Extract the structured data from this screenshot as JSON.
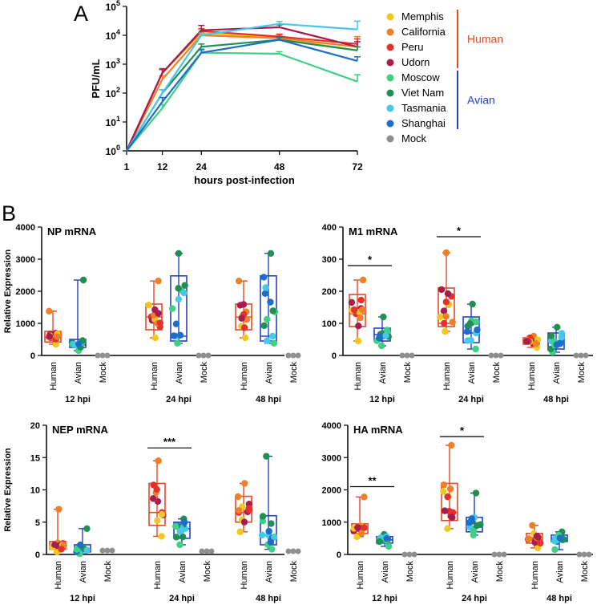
{
  "panel_labels": {
    "a": "A",
    "b": "B"
  },
  "colors": {
    "Memphis": "#f2c81f",
    "California": "#f07f2a",
    "Peru": "#e4312b",
    "Udorn": "#a81c4e",
    "Moscow": "#3dd181",
    "Viet Nam": "#1f8f52",
    "Tasmania": "#46c8ea",
    "Shanghai": "#1c6ec9",
    "Mock": "#8f8f8f",
    "Human": "#e54a25",
    "Avian": "#2541c4"
  },
  "chart_data": [
    {
      "id": "growth",
      "type": "line",
      "ylabel": "PFU/mL",
      "xlabel": "hours post-infection",
      "x": [
        1,
        12,
        24,
        48,
        72
      ],
      "x_tick_labels": [
        "1",
        "12",
        "24",
        "48",
        "72"
      ],
      "yscale": "log",
      "ylim": [
        1,
        100000
      ],
      "y_tick_labels": [
        {
          "base": "10",
          "exp": "0"
        },
        {
          "base": "10",
          "exp": "1"
        },
        {
          "base": "10",
          "exp": "2"
        },
        {
          "base": "10",
          "exp": "3"
        },
        {
          "base": "10",
          "exp": "4"
        },
        {
          "base": "10",
          "exp": "5"
        }
      ],
      "series": [
        {
          "name": "Memphis",
          "values": [
            1,
            500,
            12000,
            8000,
            3000
          ],
          "err": [
            0,
            150,
            3000,
            1500,
            900
          ]
        },
        {
          "name": "California",
          "values": [
            1,
            300,
            10000,
            8000,
            4000
          ],
          "err": [
            0,
            100,
            2500,
            2000,
            5000
          ]
        },
        {
          "name": "Peru",
          "values": [
            1,
            500,
            14000,
            9000,
            5000
          ],
          "err": [
            0,
            150,
            3000,
            2000,
            2500
          ]
        },
        {
          "name": "Udorn",
          "values": [
            1,
            500,
            15000,
            19000,
            4000
          ],
          "err": [
            0,
            200,
            7000,
            4000,
            2000
          ]
        },
        {
          "name": "Moscow",
          "values": [
            1,
            30,
            2500,
            2300,
            250
          ],
          "err": [
            0,
            10,
            500,
            400,
            180
          ]
        },
        {
          "name": "Viet Nam",
          "values": [
            1,
            100,
            4000,
            7000,
            3000
          ],
          "err": [
            0,
            30,
            1000,
            1500,
            1000
          ]
        },
        {
          "name": "Tasmania",
          "values": [
            1,
            100,
            10000,
            25000,
            16000
          ],
          "err": [
            0,
            30,
            2000,
            5000,
            15000
          ]
        },
        {
          "name": "Shanghai",
          "values": [
            1,
            50,
            2500,
            7000,
            1300
          ],
          "err": [
            0,
            20,
            800,
            1500,
            500
          ]
        }
      ],
      "legend": [
        "Memphis",
        "California",
        "Peru",
        "Udorn",
        "Moscow",
        "Viet Nam",
        "Tasmania",
        "Shanghai",
        "Mock"
      ],
      "groups": [
        {
          "label": "Human",
          "members": [
            "Memphis",
            "California",
            "Peru",
            "Udorn"
          ]
        },
        {
          "label": "Avian",
          "members": [
            "Moscow",
            "Viet Nam",
            "Tasmania",
            "Shanghai"
          ]
        }
      ]
    },
    {
      "id": "np",
      "type": "box",
      "title": "NP mRNA",
      "ylabel": "Relative Expression",
      "ylim": [
        0,
        4000
      ],
      "yticks": [
        0,
        1000,
        2000,
        3000,
        4000
      ],
      "y_tick_labels": [
        "0",
        "1000",
        "2000",
        "3000",
        "4000"
      ],
      "categories": [
        "Human",
        "Avian",
        "Mock"
      ],
      "timepoints": [
        "12 hpi",
        "24 hpi",
        "48 hpi"
      ],
      "boxes": [
        [
          {
            "min": 350,
            "q1": 420,
            "median": 550,
            "q3": 750,
            "max": 1380
          },
          {
            "min": 150,
            "q1": 250,
            "median": 330,
            "q3": 500,
            "max": 2350
          },
          {
            "min": 0,
            "q1": 0,
            "median": 0,
            "q3": 0,
            "max": 0
          }
        ],
        [
          {
            "min": 550,
            "q1": 800,
            "median": 1200,
            "q3": 1600,
            "max": 2320
          },
          {
            "min": 380,
            "q1": 450,
            "median": 600,
            "q3": 2480,
            "max": 3180
          },
          {
            "min": 0,
            "q1": 0,
            "median": 0,
            "q3": 0,
            "max": 0
          }
        ],
        [
          {
            "min": 550,
            "q1": 800,
            "median": 1200,
            "q3": 1600,
            "max": 2320
          },
          {
            "min": 380,
            "q1": 450,
            "median": 600,
            "q3": 2480,
            "max": 3180
          },
          {
            "min": 0,
            "q1": 0,
            "median": 0,
            "q3": 0,
            "max": 0
          }
        ]
      ],
      "significance": []
    },
    {
      "id": "m1",
      "type": "box",
      "title": "M1 mRNA",
      "ylabel": "",
      "ylim": [
        0,
        400
      ],
      "yticks": [
        0,
        100,
        200,
        300,
        400
      ],
      "y_tick_labels": [
        "0",
        "100",
        "200",
        "300",
        "400"
      ],
      "categories": [
        "Human",
        "Avian",
        "Mock"
      ],
      "timepoints": [
        "12 hpi",
        "24 hpi",
        "48 hpi"
      ],
      "boxes": [
        [
          {
            "min": 45,
            "q1": 90,
            "median": 130,
            "q3": 190,
            "max": 235
          },
          {
            "min": 30,
            "q1": 45,
            "median": 65,
            "q3": 85,
            "max": 120
          },
          {
            "min": 0,
            "q1": 0,
            "median": 0,
            "q3": 0,
            "max": 0
          }
        ],
        [
          {
            "min": 75,
            "q1": 90,
            "median": 100,
            "q3": 210,
            "max": 320
          },
          {
            "min": 20,
            "q1": 40,
            "median": 70,
            "q3": 120,
            "max": 160
          },
          {
            "min": 0,
            "q1": 0,
            "median": 0,
            "q3": 0,
            "max": 0
          }
        ],
        [
          {
            "min": 25,
            "q1": 35,
            "median": 45,
            "q3": 55,
            "max": 60
          },
          {
            "min": 10,
            "q1": 20,
            "median": 45,
            "q3": 70,
            "max": 88
          },
          {
            "min": 0,
            "q1": 0,
            "median": 0,
            "q3": 0,
            "max": 0
          }
        ]
      ],
      "significance": [
        {
          "tp": 0,
          "from": 0,
          "to": 1,
          "y": 280,
          "label": "*"
        },
        {
          "tp": 1,
          "from": 0,
          "to": 1,
          "y": 370,
          "label": "*"
        }
      ]
    },
    {
      "id": "nep",
      "type": "box",
      "title": "NEP mRNA",
      "ylabel": "Relative Expression",
      "ylim": [
        0,
        20
      ],
      "yticks": [
        0,
        5,
        10,
        15,
        20
      ],
      "y_tick_labels": [
        "0",
        "5",
        "10",
        "15",
        "20"
      ],
      "categories": [
        "Human",
        "Avian",
        "Mock"
      ],
      "timepoints": [
        "12 hpi",
        "24 hpi",
        "48 hpi"
      ],
      "boxes": [
        [
          {
            "min": 0.4,
            "q1": 0.8,
            "median": 1.2,
            "q3": 2,
            "max": 7
          },
          {
            "min": 0.1,
            "q1": 0.4,
            "median": 0.8,
            "q3": 1.5,
            "max": 4
          },
          {
            "min": 0.5,
            "q1": 0.55,
            "median": 0.6,
            "q3": 0.65,
            "max": 0.8
          }
        ],
        [
          {
            "min": 2.8,
            "q1": 4.5,
            "median": 6.5,
            "q3": 11,
            "max": 14.5
          },
          {
            "min": 1.5,
            "q1": 2.5,
            "median": 4,
            "q3": 5,
            "max": 5.5
          },
          {
            "min": 0.4,
            "q1": 0.45,
            "median": 0.5,
            "q3": 0.55,
            "max": 0.6
          }
        ],
        [
          {
            "min": 3.5,
            "q1": 5,
            "median": 6.5,
            "q3": 9,
            "max": 11
          },
          {
            "min": 0.8,
            "q1": 1.5,
            "median": 3,
            "q3": 6,
            "max": 15.2
          },
          {
            "min": 0.4,
            "q1": 0.45,
            "median": 0.5,
            "q3": 0.55,
            "max": 0.7
          }
        ]
      ],
      "significance": [
        {
          "tp": 1,
          "from": 0,
          "to": 1,
          "y": 16.5,
          "label": "***"
        }
      ]
    },
    {
      "id": "ha",
      "type": "box",
      "title": "HA mRNA",
      "ylabel": "",
      "ylim": [
        0,
        4000
      ],
      "yticks": [
        0,
        1000,
        2000,
        3000,
        4000
      ],
      "y_tick_labels": [
        "0",
        "1000",
        "2000",
        "3000",
        "4000"
      ],
      "categories": [
        "Human",
        "Avian",
        "Mock"
      ],
      "timepoints": [
        "12 hpi",
        "24 hpi",
        "48 hpi"
      ],
      "boxes": [
        [
          {
            "min": 550,
            "q1": 650,
            "median": 800,
            "q3": 950,
            "max": 1780
          },
          {
            "min": 250,
            "q1": 350,
            "median": 450,
            "q3": 550,
            "max": 620
          },
          {
            "min": 0,
            "q1": 0,
            "median": 0,
            "q3": 0,
            "max": 0
          }
        ],
        [
          {
            "min": 800,
            "q1": 1050,
            "median": 1300,
            "q3": 2200,
            "max": 3380
          },
          {
            "min": 600,
            "q1": 700,
            "median": 850,
            "q3": 1150,
            "max": 1900
          },
          {
            "min": 0,
            "q1": 0,
            "median": 0,
            "q3": 0,
            "max": 0
          }
        ],
        [
          {
            "min": 200,
            "q1": 350,
            "median": 450,
            "q3": 650,
            "max": 900
          },
          {
            "min": 150,
            "q1": 400,
            "median": 500,
            "q3": 600,
            "max": 700
          },
          {
            "min": 0,
            "q1": 0,
            "median": 0,
            "q3": 0,
            "max": 0
          }
        ]
      ],
      "significance": [
        {
          "tp": 0,
          "from": 0,
          "to": 1,
          "y": 2100,
          "label": "**"
        },
        {
          "tp": 1,
          "from": 0,
          "to": 1,
          "y": 3650,
          "label": "*"
        }
      ]
    }
  ]
}
